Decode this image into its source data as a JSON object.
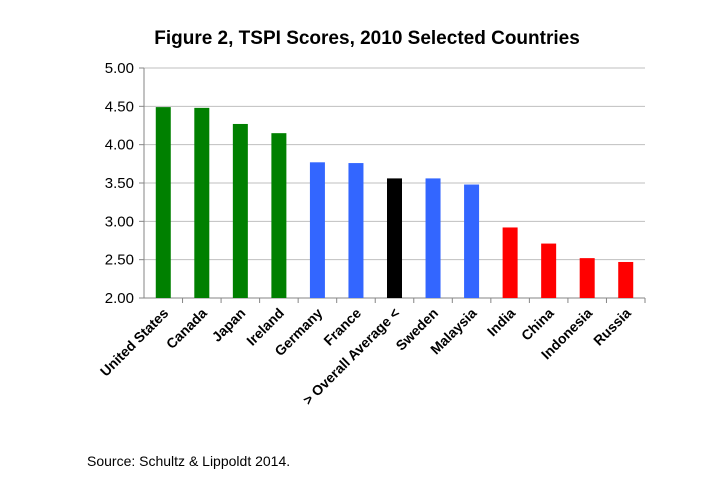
{
  "chart_data": {
    "type": "bar",
    "title": "Figure 2, TSPI Scores, 2010 Selected Countries",
    "xlabel": "",
    "ylabel": "",
    "ylim": [
      2.0,
      5.0
    ],
    "yticks": [
      "2.00",
      "2.50",
      "3.00",
      "3.50",
      "4.00",
      "4.50",
      "5.00"
    ],
    "grid": true,
    "legend": "none",
    "categories": [
      "United States",
      "Canada",
      "Japan",
      "Ireland",
      "Germany",
      "France",
      "> Overall Average <",
      "Sweden",
      "Malaysia",
      "India",
      "China",
      "Indonesia",
      "Russia"
    ],
    "values": [
      4.49,
      4.48,
      4.27,
      4.15,
      3.77,
      3.76,
      3.56,
      3.56,
      3.48,
      2.92,
      2.71,
      2.52,
      2.47
    ],
    "colors": [
      "#008000",
      "#008000",
      "#008000",
      "#008000",
      "#3366FF",
      "#3366FF",
      "#000000",
      "#3366FF",
      "#3366FF",
      "#FF0000",
      "#FF0000",
      "#FF0000",
      "#FF0000"
    ]
  },
  "source": "Source: Schultz & Lippoldt 2014."
}
